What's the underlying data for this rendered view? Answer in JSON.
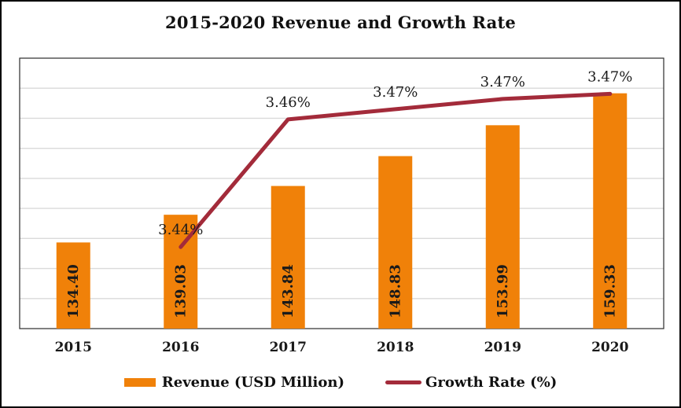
{
  "title": "2015-2020 Revenue and Growth Rate",
  "colors": {
    "bar": "#F08109",
    "line": "#A32B3A",
    "grid": "#DADADA",
    "plot_border": "#2B2B2B",
    "text": "#1A1A1A"
  },
  "chart_data": {
    "type": "bar",
    "combo": "bar+line",
    "title": "2015-2020 Revenue and Growth Rate",
    "categories": [
      "2015",
      "2016",
      "2017",
      "2018",
      "2019",
      "2020"
    ],
    "series": [
      {
        "name": "Revenue (USD Million)",
        "type": "bar",
        "axis": "primary",
        "values": [
          134.4,
          139.03,
          143.84,
          148.83,
          153.99,
          159.33
        ],
        "labels": [
          "134.40",
          "139.03",
          "143.84",
          "148.83",
          "153.99",
          "159.33"
        ]
      },
      {
        "name": "Growth Rate (%)",
        "type": "line",
        "axis": "secondary",
        "values": [
          null,
          3.44,
          3.465,
          3.467,
          3.469,
          3.47
        ],
        "labels": [
          null,
          "3.44%",
          "3.46%",
          "3.47%",
          "3.47%",
          "3.47%"
        ]
      }
    ],
    "xlabel": "",
    "ylabel": "",
    "ylim": [
      120,
      165.2
    ],
    "y2lim": [
      3.424,
      3.477
    ],
    "grid_divisions": 9,
    "grid": "horizontal",
    "legend_position": "bottom"
  }
}
